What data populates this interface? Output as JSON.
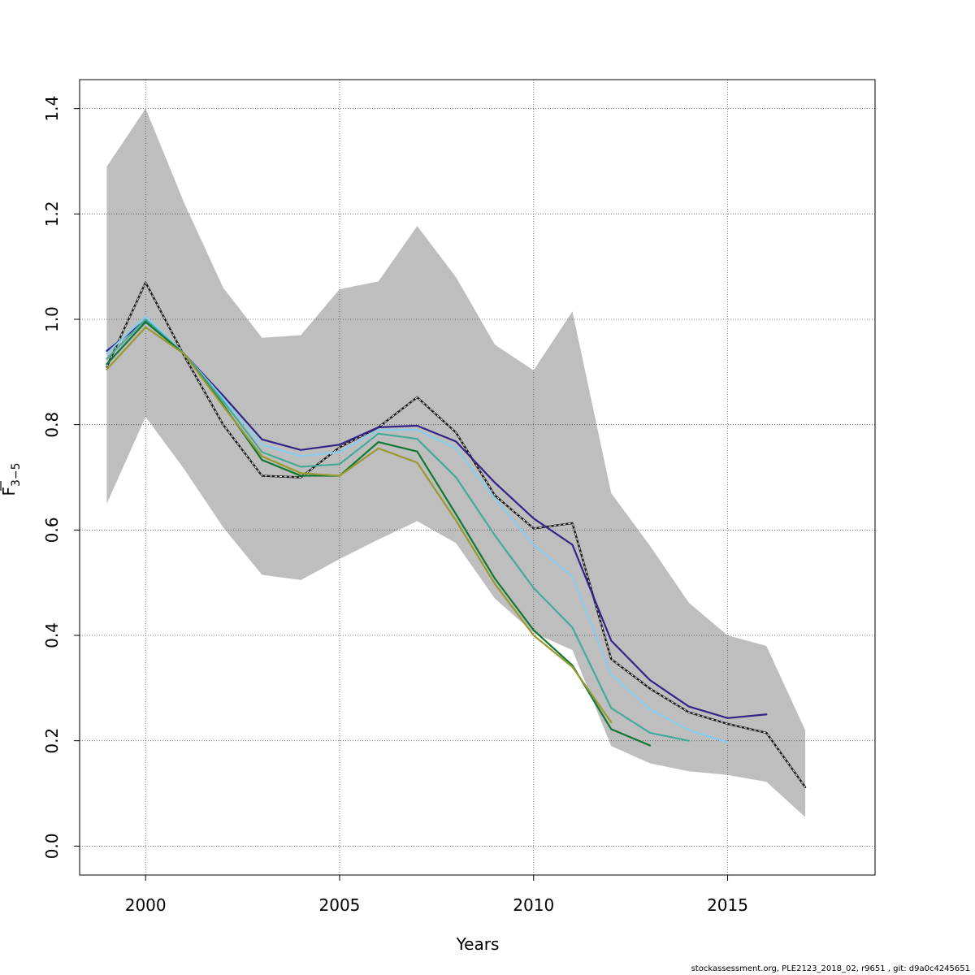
{
  "chart_data": {
    "type": "line",
    "title": "",
    "xlabel": "Years",
    "ylabel": "F",
    "ylabel_subscript": "3−5",
    "xlim": [
      1998.3,
      2018.8
    ],
    "ylim": [
      -0.055,
      1.455
    ],
    "x_ticks": [
      2000,
      2005,
      2010,
      2015
    ],
    "x_tick_labels": [
      "2000",
      "2005",
      "2010",
      "2015"
    ],
    "y_ticks": [
      0.0,
      0.2,
      0.4,
      0.6,
      0.8,
      1.0,
      1.2,
      1.4
    ],
    "y_tick_labels": [
      "0.0",
      "0.2",
      "0.4",
      "0.6",
      "0.8",
      "1.0",
      "1.2",
      "1.4"
    ],
    "grid": true,
    "confidence_band": {
      "color": "#bebebe",
      "x": [
        1999,
        2000,
        2001,
        2002,
        2003,
        2004,
        2005,
        2006,
        2007,
        2008,
        2009,
        2010,
        2011,
        2012,
        2013,
        2014,
        2015,
        2016,
        2017
      ],
      "upper": [
        1.29,
        1.4,
        1.22,
        1.06,
        0.965,
        0.97,
        1.057,
        1.072,
        1.177,
        1.08,
        0.952,
        0.903,
        1.015,
        0.67,
        0.57,
        0.462,
        0.4,
        0.38,
        0.22
      ],
      "lower": [
        0.65,
        0.815,
        0.715,
        0.605,
        0.515,
        0.505,
        0.545,
        0.582,
        0.617,
        0.575,
        0.47,
        0.405,
        0.372,
        0.19,
        0.157,
        0.142,
        0.135,
        0.122,
        0.055
      ]
    },
    "series": [
      {
        "color": "#1a1a1a",
        "dashed": true,
        "x": [
          1999,
          2000,
          2001,
          2002,
          2003,
          2004,
          2005,
          2006,
          2007,
          2008,
          2009,
          2010,
          2011,
          2012,
          2013,
          2014,
          2015,
          2016,
          2017
        ],
        "values": [
          0.91,
          1.07,
          0.93,
          0.8,
          0.703,
          0.7,
          0.757,
          0.795,
          0.852,
          0.785,
          0.666,
          0.603,
          0.613,
          0.355,
          0.299,
          0.254,
          0.232,
          0.215,
          0.112
        ]
      },
      {
        "color": "#332288",
        "dashed": false,
        "x": [
          1999,
          2000,
          2001,
          2002,
          2003,
          2004,
          2005,
          2006,
          2007,
          2008,
          2009,
          2010,
          2011,
          2012,
          2013,
          2014,
          2015,
          2016
        ],
        "values": [
          0.94,
          0.998,
          0.934,
          0.855,
          0.772,
          0.752,
          0.762,
          0.795,
          0.798,
          0.768,
          0.69,
          0.622,
          0.572,
          0.39,
          0.315,
          0.265,
          0.243,
          0.25
        ]
      },
      {
        "color": "#88ccee",
        "dashed": false,
        "x": [
          1999,
          2000,
          2001,
          2002,
          2003,
          2004,
          2005,
          2006,
          2007,
          2008,
          2009,
          2010,
          2011,
          2012,
          2013,
          2014,
          2015
        ],
        "values": [
          0.935,
          1.006,
          0.934,
          0.85,
          0.762,
          0.74,
          0.748,
          0.79,
          0.79,
          0.755,
          0.66,
          0.572,
          0.512,
          0.325,
          0.26,
          0.22,
          0.197
        ]
      },
      {
        "color": "#44aa99",
        "dashed": false,
        "x": [
          1999,
          2000,
          2001,
          2002,
          2003,
          2004,
          2005,
          2006,
          2007,
          2008,
          2009,
          2010,
          2011,
          2012,
          2013,
          2014
        ],
        "values": [
          0.925,
          1.0,
          0.934,
          0.845,
          0.748,
          0.72,
          0.725,
          0.783,
          0.773,
          0.7,
          0.59,
          0.49,
          0.415,
          0.262,
          0.215,
          0.2
        ]
      },
      {
        "color": "#117733",
        "dashed": false,
        "x": [
          1999,
          2000,
          2001,
          2002,
          2003,
          2004,
          2005,
          2006,
          2007,
          2008,
          2009,
          2010,
          2011,
          2012,
          2013
        ],
        "values": [
          0.915,
          0.995,
          0.934,
          0.838,
          0.733,
          0.703,
          0.703,
          0.767,
          0.749,
          0.63,
          0.508,
          0.41,
          0.343,
          0.222,
          0.191
        ]
      },
      {
        "color": "#999933",
        "dashed": false,
        "x": [
          1999,
          2000,
          2001,
          2002,
          2003,
          2004,
          2005,
          2006,
          2007,
          2008,
          2009,
          2010,
          2011,
          2012
        ],
        "values": [
          0.905,
          0.985,
          0.934,
          0.835,
          0.74,
          0.708,
          0.703,
          0.755,
          0.728,
          0.618,
          0.498,
          0.4,
          0.34,
          0.235
        ]
      }
    ]
  },
  "footer": {
    "note": "stockassessment.org, PLE2123_2018_02, r9651 , git: d9a0c4245651"
  }
}
